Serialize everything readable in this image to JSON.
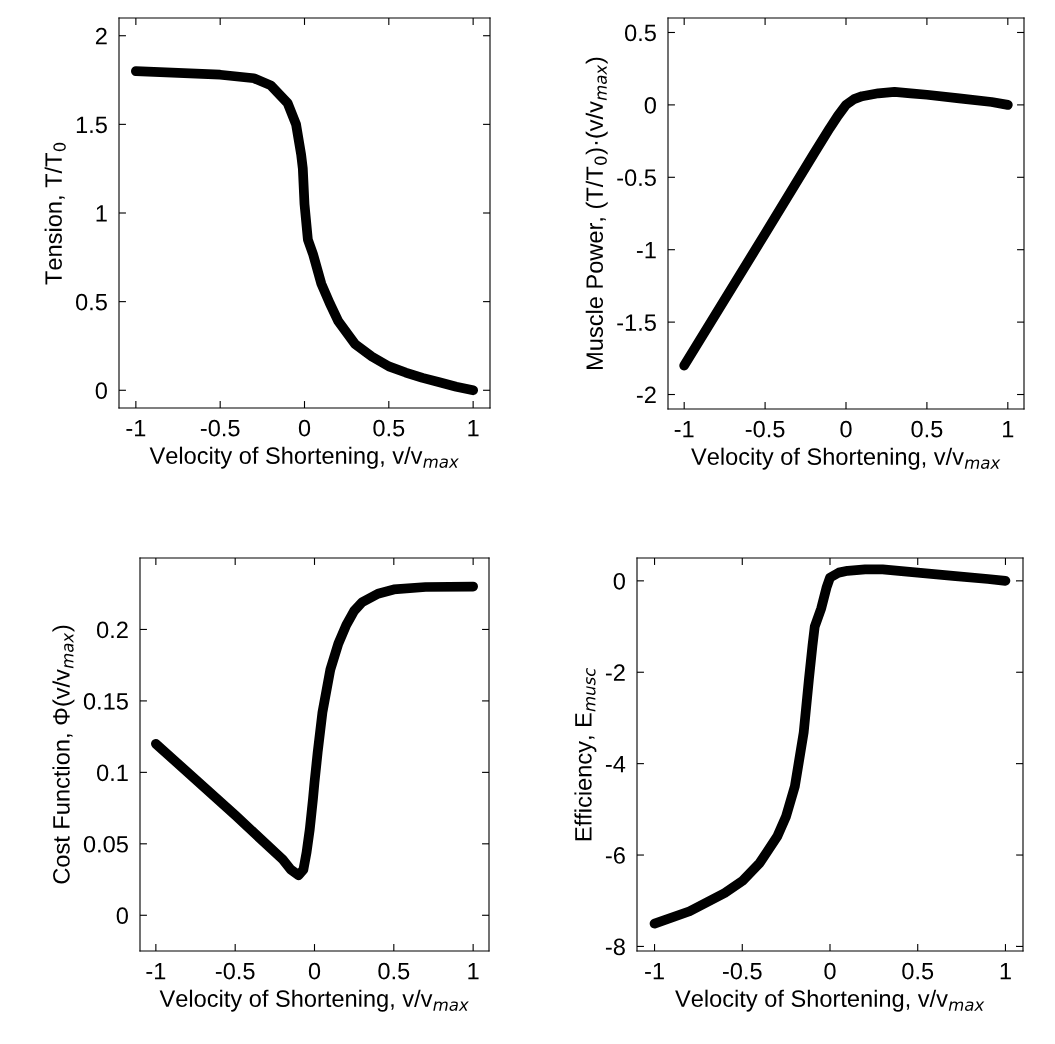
{
  "chart_data": [
    {
      "type": "line",
      "xlabel": "Velocity of Shortening, v/v$_{max}$",
      "ylabel": "Tension, T/T$_{0}$",
      "xlim": [
        -1.1,
        1.1
      ],
      "ylim": [
        -0.1,
        2.1
      ],
      "xticks": [
        -1,
        -0.5,
        0,
        0.5,
        1
      ],
      "yticks": [
        0,
        0.5,
        1,
        1.5,
        2
      ],
      "grid": false,
      "line_style": "solid",
      "x": [
        -1,
        -0.5,
        -0.3,
        -0.2,
        -0.1,
        -0.05,
        -0.02,
        -0.01,
        0,
        0.02,
        0.05,
        0.1,
        0.15,
        0.2,
        0.3,
        0.4,
        0.5,
        0.6,
        0.7,
        0.8,
        0.9,
        1
      ],
      "series": [
        {
          "color": "#000000",
          "values": [
            1.8,
            1.78,
            1.76,
            1.72,
            1.62,
            1.5,
            1.33,
            1.25,
            1.05,
            0.85,
            0.77,
            0.6,
            0.49,
            0.39,
            0.26,
            0.19,
            0.135,
            0.1,
            0.07,
            0.045,
            0.02,
            0
          ]
        }
      ]
    },
    {
      "type": "line",
      "xlabel": "Velocity of Shortening, v/v$_{max}$",
      "ylabel": "Muscle Power, (T/T$_{0}$)·(v/v$_{max}$)",
      "xlim": [
        -1.1,
        1.1
      ],
      "ylim": [
        -2.1,
        0.6
      ],
      "xticks": [
        -1,
        -0.5,
        0,
        0.5,
        1
      ],
      "yticks": [
        -2,
        -1.5,
        -1,
        -0.5,
        0,
        0.5
      ],
      "grid": false,
      "line_style": "solid",
      "x": [
        -1,
        -0.5,
        -0.2,
        -0.1,
        -0.05,
        0,
        0.05,
        0.1,
        0.2,
        0.3,
        0.4,
        0.5,
        0.7,
        0.9,
        1
      ],
      "series": [
        {
          "color": "#000000",
          "values": [
            -1.8,
            -0.89,
            -0.34,
            -0.16,
            -0.075,
            0,
            0.04,
            0.06,
            0.08,
            0.09,
            0.08,
            0.07,
            0.045,
            0.02,
            0
          ]
        }
      ]
    },
    {
      "type": "line",
      "xlabel": "Velocity of Shortening, v/v$_{max}$",
      "ylabel": "Cost Function, Φ(v/v$_{max}$)",
      "xlim": [
        -1.1,
        1.1
      ],
      "ylim": [
        -0.025,
        0.25
      ],
      "xticks": [
        -1,
        -0.5,
        0,
        0.5,
        1
      ],
      "yticks": [
        0,
        0.05,
        0.1,
        0.15,
        0.2
      ],
      "grid": false,
      "line_style": "solid",
      "x": [
        -1,
        -0.5,
        -0.2,
        -0.15,
        -0.1,
        -0.07,
        -0.05,
        -0.03,
        -0.01,
        0,
        0.02,
        0.05,
        0.1,
        0.15,
        0.2,
        0.25,
        0.3,
        0.4,
        0.5,
        0.7,
        1
      ],
      "series": [
        {
          "color": "#000000",
          "values": [
            0.12,
            0.07,
            0.039,
            0.032,
            0.028,
            0.032,
            0.044,
            0.06,
            0.081,
            0.093,
            0.114,
            0.142,
            0.172,
            0.19,
            0.203,
            0.213,
            0.219,
            0.225,
            0.228,
            0.2297,
            0.23
          ]
        }
      ]
    },
    {
      "type": "line",
      "xlabel": "Velocity of Shortening, v/v$_{max}$",
      "ylabel": "Efficiency, E$_{musc}$",
      "xlim": [
        -1.1,
        1.1
      ],
      "ylim": [
        -8.1,
        0.5
      ],
      "xticks": [
        -1,
        -0.5,
        0,
        0.5,
        1
      ],
      "yticks": [
        -8,
        -6,
        -4,
        -2,
        0
      ],
      "grid": false,
      "line_style": "solid",
      "x": [
        -1,
        -0.8,
        -0.6,
        -0.5,
        -0.4,
        -0.3,
        -0.25,
        -0.2,
        -0.15,
        -0.12,
        -0.1,
        -0.087,
        -0.05,
        -0.02,
        0,
        0.05,
        0.1,
        0.2,
        0.3,
        0.5,
        0.7,
        0.9,
        1
      ],
      "series": [
        {
          "color": "#000000",
          "values": [
            -7.5,
            -7.23,
            -6.83,
            -6.57,
            -6.17,
            -5.59,
            -5.15,
            -4.49,
            -3.32,
            -2.15,
            -1.42,
            -1.0,
            -0.6,
            -0.15,
            0.07,
            0.18,
            0.22,
            0.25,
            0.25,
            0.18,
            0.11,
            0.04,
            0
          ]
        }
      ]
    }
  ]
}
